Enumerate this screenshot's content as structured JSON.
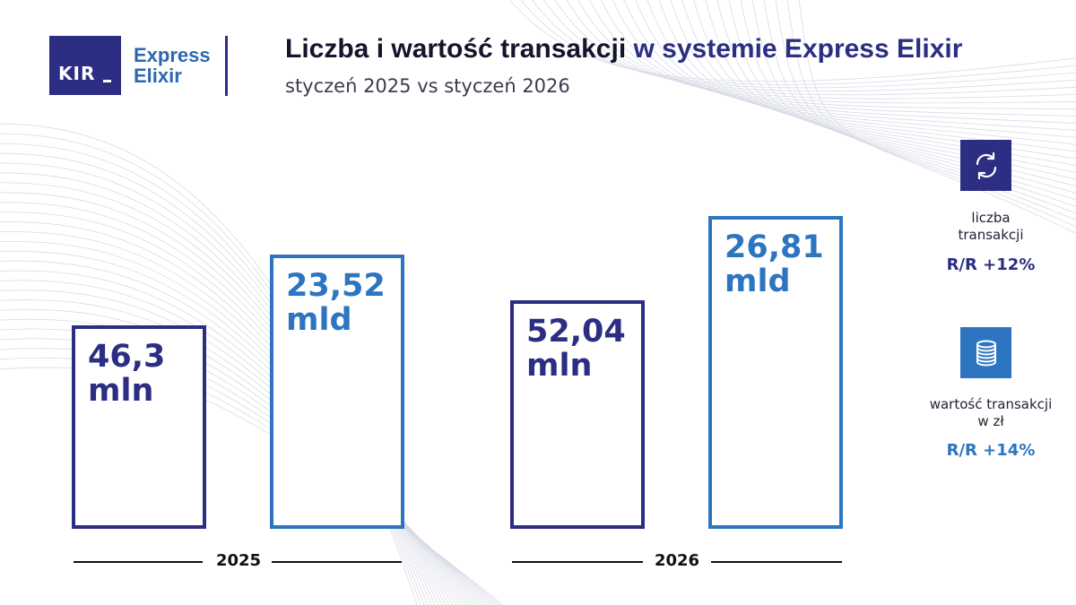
{
  "brand": {
    "logo_text": "KIR",
    "product_line1": "Express",
    "product_line2": "Elixir"
  },
  "header": {
    "title_part1": "Liczba i wartość transakcji",
    "title_part2": "w systemie Express Elixir",
    "subtitle": "styczeń 2025 vs styczeń 2026"
  },
  "colors": {
    "navy": "#2b2e83",
    "blue": "#2d75c0",
    "text": "#14142b"
  },
  "chart_data": {
    "type": "bar",
    "title": "Liczba i wartość transakcji w systemie Express Elixir",
    "subtitle": "styczeń 2025 vs styczeń 2026",
    "categories": [
      "2025",
      "2026"
    ],
    "series": [
      {
        "name": "liczba transakcji",
        "values": [
          46.3,
          52.04
        ],
        "unit": "mln",
        "labels": [
          "46,3",
          "52,04"
        ],
        "color": "#2b2e83"
      },
      {
        "name": "wartość transakcji w zł",
        "values": [
          23.52,
          26.81
        ],
        "unit": "mld",
        "labels": [
          "23,52",
          "26,81"
        ],
        "color": "#2d75c0"
      }
    ],
    "xlabel": "",
    "ylabel": ""
  },
  "stats": [
    {
      "icon": "exchange-arrows-icon",
      "label_line1": "liczba",
      "label_line2": "transakcji",
      "change": "R/R +12%"
    },
    {
      "icon": "coins-stack-icon",
      "label_line1": "wartość transakcji",
      "label_line2": "w zł",
      "change": "R/R +14%"
    }
  ]
}
